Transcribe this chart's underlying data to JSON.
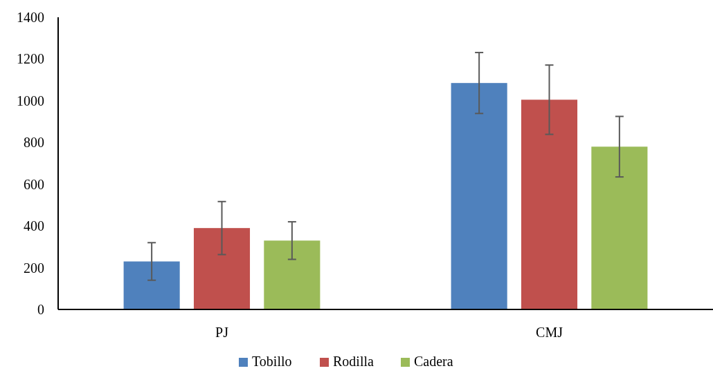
{
  "chart_data": {
    "type": "bar",
    "categories": [
      "PJ",
      "CMJ"
    ],
    "series": [
      {
        "name": "Tobillo",
        "color": "#4f81bd",
        "values": [
          230,
          1085
        ],
        "errors": [
          90,
          146
        ]
      },
      {
        "name": "Rodilla",
        "color": "#c0504d",
        "values": [
          390,
          1005
        ],
        "errors": [
          127,
          166
        ]
      },
      {
        "name": "Cadera",
        "color": "#9bbb59",
        "values": [
          330,
          780
        ],
        "errors": [
          90,
          145
        ]
      }
    ],
    "ylim": [
      0,
      1400
    ],
    "yticks": [
      0,
      200,
      400,
      600,
      800,
      1000,
      1200,
      1400
    ],
    "grid": false,
    "legend": "bottom"
  }
}
